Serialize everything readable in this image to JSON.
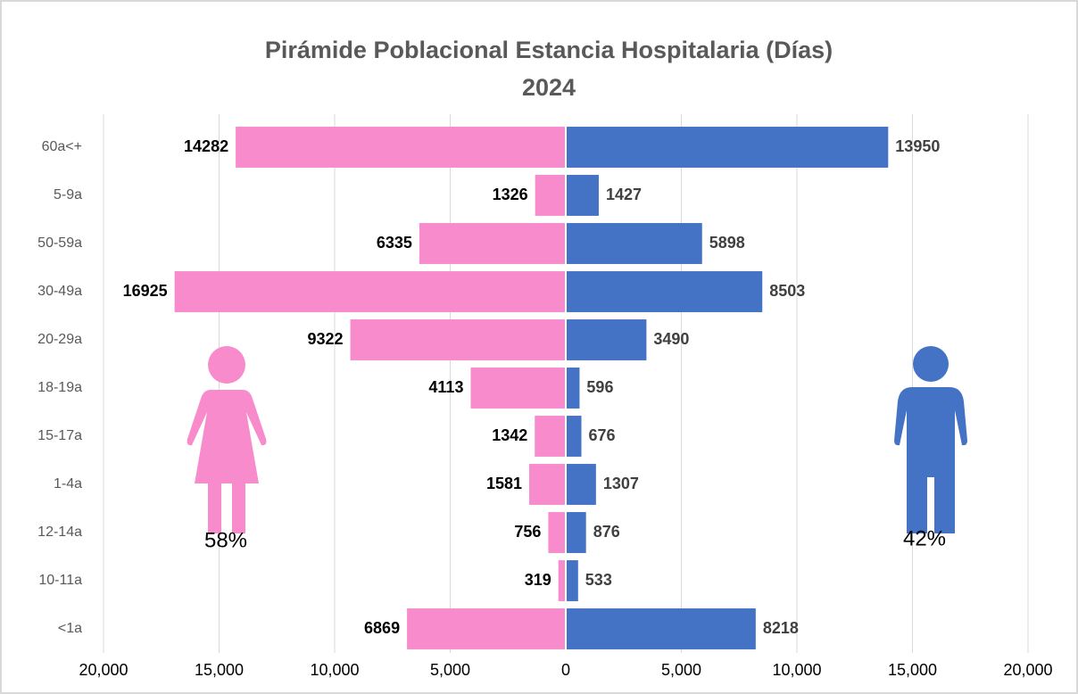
{
  "chart_data": {
    "type": "pyramid",
    "title": "Pirámide Poblacional Estancia Hospitalaria (Días)",
    "subtitle": "2024",
    "categories": [
      "60a<+",
      "5-9a",
      "50-59a",
      "30-49a",
      "20-29a",
      "18-19a",
      "15-17a",
      "1-4a",
      "12-14a",
      "10-11a",
      "<1a"
    ],
    "series": [
      {
        "color": "#f78bcb",
        "values": [
          -14282,
          -1326,
          -6335,
          -16925,
          -9322,
          -4113,
          -1342,
          -1581,
          -756,
          -319,
          -6869
        ],
        "value_labels": [
          "14282",
          "1326",
          "6335",
          "16925",
          "9322",
          "4113",
          "1342",
          "1581",
          "756",
          "319",
          "6869"
        ]
      },
      {
        "color": "#4472c4",
        "values": [
          13950,
          1427,
          5898,
          8503,
          3490,
          596,
          676,
          1307,
          876,
          533,
          8218
        ]
      }
    ],
    "xlim": [
      -20000,
      20000
    ],
    "xticks": [
      {
        "value": -20000,
        "label": "20,000"
      },
      {
        "value": -15000,
        "label": "15,000"
      },
      {
        "value": -10000,
        "label": "10,000"
      },
      {
        "value": -5000,
        "label": "5,000"
      },
      0,
      {
        "value": 5000,
        "label": "5,000"
      },
      {
        "value": 10000,
        "label": "10,000"
      },
      {
        "value": 15000,
        "label": "15,000"
      },
      {
        "value": 20000,
        "label": "20,000"
      }
    ],
    "grid": true,
    "annotations": [
      "58%",
      "42%"
    ]
  }
}
